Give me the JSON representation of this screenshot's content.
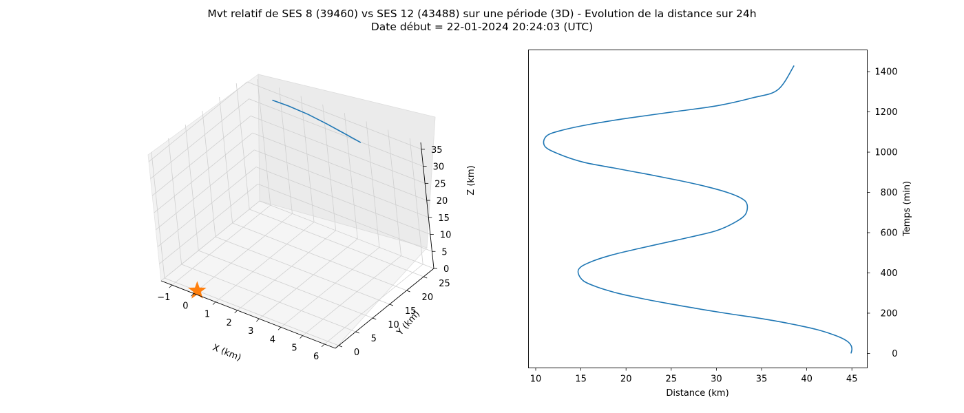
{
  "figure": {
    "title_line1": "Mvt relatif de SES 8 (39460) vs SES 12 (43488) sur une période (3D) - Evolution de la distance sur 24h",
    "title_line2": "Date début = 22-01-2024 20:24:03 (UTC)"
  },
  "chart_data": [
    {
      "type": "line3d",
      "xlabel": "X (km)",
      "ylabel": "Y (km)",
      "zlabel": "Z (km)",
      "x_ticks": [
        "−1",
        "0",
        "1",
        "2",
        "3",
        "4",
        "5",
        "6"
      ],
      "y_ticks": [
        "0",
        "5",
        "10",
        "15",
        "20",
        "25"
      ],
      "z_ticks": [
        "0",
        "5",
        "10",
        "15",
        "20",
        "25",
        "30",
        "35"
      ],
      "xlim": [
        -1.5,
        6.5
      ],
      "ylim": [
        -1,
        28
      ],
      "zlim": [
        0,
        37
      ],
      "grid": true,
      "line_color": "#1f77b4",
      "marker": {
        "shape": "star",
        "color": "#ff7f0e",
        "x": 0,
        "y": 0,
        "z": 0
      },
      "series": [
        {
          "x": [
            -0.3,
            0.5,
            1.5,
            2.5,
            3.5,
            4.3
          ],
          "y": [
            27.5,
            27.2,
            26.6,
            25.8,
            24.9,
            24.2
          ],
          "z": [
            33.0,
            33.5,
            34.0,
            34.3,
            34.5,
            34.6
          ]
        }
      ]
    },
    {
      "type": "line",
      "xlabel": "Distance (km)",
      "ylabel": "Temps (min)",
      "x_ticks": [
        10,
        15,
        20,
        25,
        30,
        35,
        40,
        45
      ],
      "y_ticks": [
        0,
        200,
        400,
        600,
        800,
        1000,
        1200,
        1400
      ],
      "xlim": [
        9.2,
        46.7
      ],
      "ylim": [
        -72,
        1508
      ],
      "y_axis_position": "right",
      "line_color": "#1f77b4",
      "series": [
        {
          "x": [
            44.9,
            45.0,
            44.9,
            44.5,
            43.7,
            42.5,
            41.0,
            39.0,
            36.7,
            34.0,
            31.0,
            27.6,
            24.4,
            21.5,
            19.0,
            16.8,
            15.3,
            14.7,
            15.0,
            16.4,
            18.5,
            21.3,
            24.3,
            27.3,
            30.0,
            32.0,
            33.2,
            33.4,
            32.8,
            31.2,
            28.8,
            25.8,
            22.4,
            18.8,
            15.3,
            12.6,
            11.0,
            11.2,
            13.0,
            16.2,
            20.4,
            25.2,
            30.0,
            34.0,
            36.8,
            38.6
          ],
          "y": [
            0,
            20,
            40,
            60,
            80,
            100,
            120,
            140,
            160,
            180,
            200,
            225,
            250,
            275,
            300,
            330,
            360,
            400,
            430,
            460,
            490,
            520,
            550,
            580,
            610,
            650,
            690,
            740,
            770,
            800,
            830,
            860,
            890,
            920,
            950,
            990,
            1030,
            1080,
            1110,
            1140,
            1170,
            1200,
            1230,
            1270,
            1310,
            1430
          ]
        }
      ]
    }
  ]
}
